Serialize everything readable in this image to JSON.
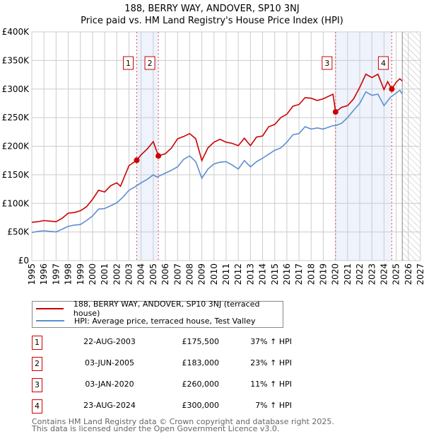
{
  "title": "188, BERRY WAY, ANDOVER, SP10 3NJ",
  "subtitle": "Price paid vs. HM Land Registry's House Price Index (HPI)",
  "chart_data": {
    "type": "line",
    "ylabel": "",
    "xlabel": "",
    "xlim": [
      1995,
      2027
    ],
    "ylim": [
      0,
      400000
    ],
    "yticks": [
      0,
      50000,
      100000,
      150000,
      200000,
      250000,
      300000,
      350000,
      400000
    ],
    "ytick_labels": [
      "£0",
      "£50K",
      "£100K",
      "£150K",
      "£200K",
      "£250K",
      "£300K",
      "£350K",
      "£400K"
    ],
    "xticks": [
      1995,
      1996,
      1997,
      1998,
      1999,
      2000,
      2001,
      2002,
      2003,
      2004,
      2005,
      2006,
      2007,
      2008,
      2009,
      2010,
      2011,
      2012,
      2013,
      2014,
      2015,
      2016,
      2017,
      2018,
      2019,
      2020,
      2021,
      2022,
      2023,
      2024,
      2025,
      2026,
      2027
    ],
    "grid": true,
    "forecast_hatch_from": 2025.5,
    "shaded_ranges": [
      [
        2003.64,
        2005.42
      ],
      [
        2020.01,
        2024.64
      ]
    ],
    "series": [
      {
        "name": "188, BERRY WAY, ANDOVER, SP10 3NJ (terraced house)",
        "color": "#cc0000",
        "x": [
          1995,
          1995.5,
          1996,
          1996.5,
          1997,
          1997.5,
          1998,
          1998.5,
          1999,
          1999.5,
          2000,
          2000.5,
          2001,
          2001.5,
          2002,
          2002.3,
          2003,
          2003.64,
          2004,
          2004.5,
          2005,
          2005.42,
          2006,
          2006.5,
          2007,
          2007.5,
          2008,
          2008.5,
          2009,
          2009.5,
          2010,
          2010.5,
          2011,
          2011.5,
          2012,
          2012.5,
          2013,
          2013.5,
          2014,
          2014.5,
          2015,
          2015.5,
          2016,
          2016.5,
          2017,
          2017.5,
          2018,
          2018.5,
          2019,
          2019.8,
          2020.01,
          2020.5,
          2021,
          2021.5,
          2022,
          2022.5,
          2023,
          2023.5,
          2024,
          2024.3,
          2024.64,
          2025,
          2025.3,
          2025.5
        ],
        "y": [
          67000,
          68000,
          70000,
          69000,
          68000,
          74000,
          83000,
          84000,
          87000,
          94000,
          107000,
          123000,
          120000,
          131000,
          136000,
          130000,
          166000,
          175500,
          185000,
          195000,
          208000,
          183000,
          187000,
          197000,
          213000,
          217000,
          222000,
          213000,
          175000,
          197000,
          207000,
          212000,
          207000,
          205000,
          201000,
          214000,
          201000,
          216000,
          218000,
          234000,
          238000,
          250000,
          256000,
          270000,
          273000,
          285000,
          284000,
          280000,
          283000,
          291000,
          260000,
          268000,
          271000,
          283000,
          303000,
          326000,
          320000,
          326000,
          299000,
          313000,
          300000,
          312000,
          318000,
          314000
        ]
      },
      {
        "name": "HPI: Average price, terraced house, Test Valley",
        "color": "#5b8fd0",
        "x": [
          1995,
          1995.5,
          1996,
          1996.5,
          1997,
          1997.5,
          1998,
          1998.5,
          1999,
          1999.5,
          2000,
          2000.5,
          2001,
          2001.5,
          2002,
          2002.5,
          2003,
          2003.5,
          2004,
          2004.5,
          2005,
          2005.3,
          2006,
          2006.5,
          2007,
          2007.5,
          2008,
          2008.5,
          2009,
          2009.5,
          2010,
          2010.5,
          2011,
          2011.5,
          2012,
          2012.5,
          2013,
          2013.5,
          2014,
          2014.5,
          2015,
          2015.5,
          2016,
          2016.5,
          2017,
          2017.5,
          2018,
          2018.5,
          2019,
          2019.8,
          2020,
          2020.5,
          2021,
          2021.5,
          2022,
          2022.5,
          2023,
          2023.5,
          2024,
          2024.5,
          2025,
          2025.3,
          2025.5
        ],
        "y": [
          49000,
          51000,
          52000,
          51000,
          50000,
          55000,
          60000,
          62000,
          63000,
          70000,
          78000,
          90000,
          91000,
          96000,
          101000,
          111000,
          123000,
          129000,
          136000,
          142000,
          150000,
          146000,
          153000,
          158000,
          164000,
          177000,
          183000,
          173000,
          144000,
          160000,
          169000,
          172000,
          173000,
          167000,
          160000,
          175000,
          164000,
          173000,
          179000,
          186000,
          193000,
          197000,
          207000,
          220000,
          222000,
          234000,
          230000,
          232000,
          230000,
          236000,
          236000,
          240000,
          250000,
          263000,
          275000,
          295000,
          289000,
          291000,
          271000,
          285000,
          293000,
          298000,
          291000
        ]
      }
    ],
    "sales": [
      {
        "label": "1",
        "x": 2003.64,
        "y": 175500
      },
      {
        "label": "2",
        "x": 2005.42,
        "y": 183000
      },
      {
        "label": "3",
        "x": 2020.01,
        "y": 260000
      },
      {
        "label": "4",
        "x": 2024.64,
        "y": 300000
      }
    ]
  },
  "legend": {
    "property": "188, BERRY WAY, ANDOVER, SP10 3NJ (terraced house)",
    "hpi": "HPI: Average price, terraced house, Test Valley"
  },
  "transactions": [
    {
      "num": "1",
      "date": "22-AUG-2003",
      "price": "£175,500",
      "hpi": "37% ↑ HPI"
    },
    {
      "num": "2",
      "date": "03-JUN-2005",
      "price": "£183,000",
      "hpi": "23% ↑ HPI"
    },
    {
      "num": "3",
      "date": "03-JAN-2020",
      "price": "£260,000",
      "hpi": "11% ↑ HPI"
    },
    {
      "num": "4",
      "date": "23-AUG-2024",
      "price": "£300,000",
      "hpi": "7% ↑ HPI"
    }
  ],
  "footer": {
    "line1": "Contains HM Land Registry data © Crown copyright and database right 2025.",
    "line2": "This data is licensed under the Open Government Licence v3.0."
  }
}
